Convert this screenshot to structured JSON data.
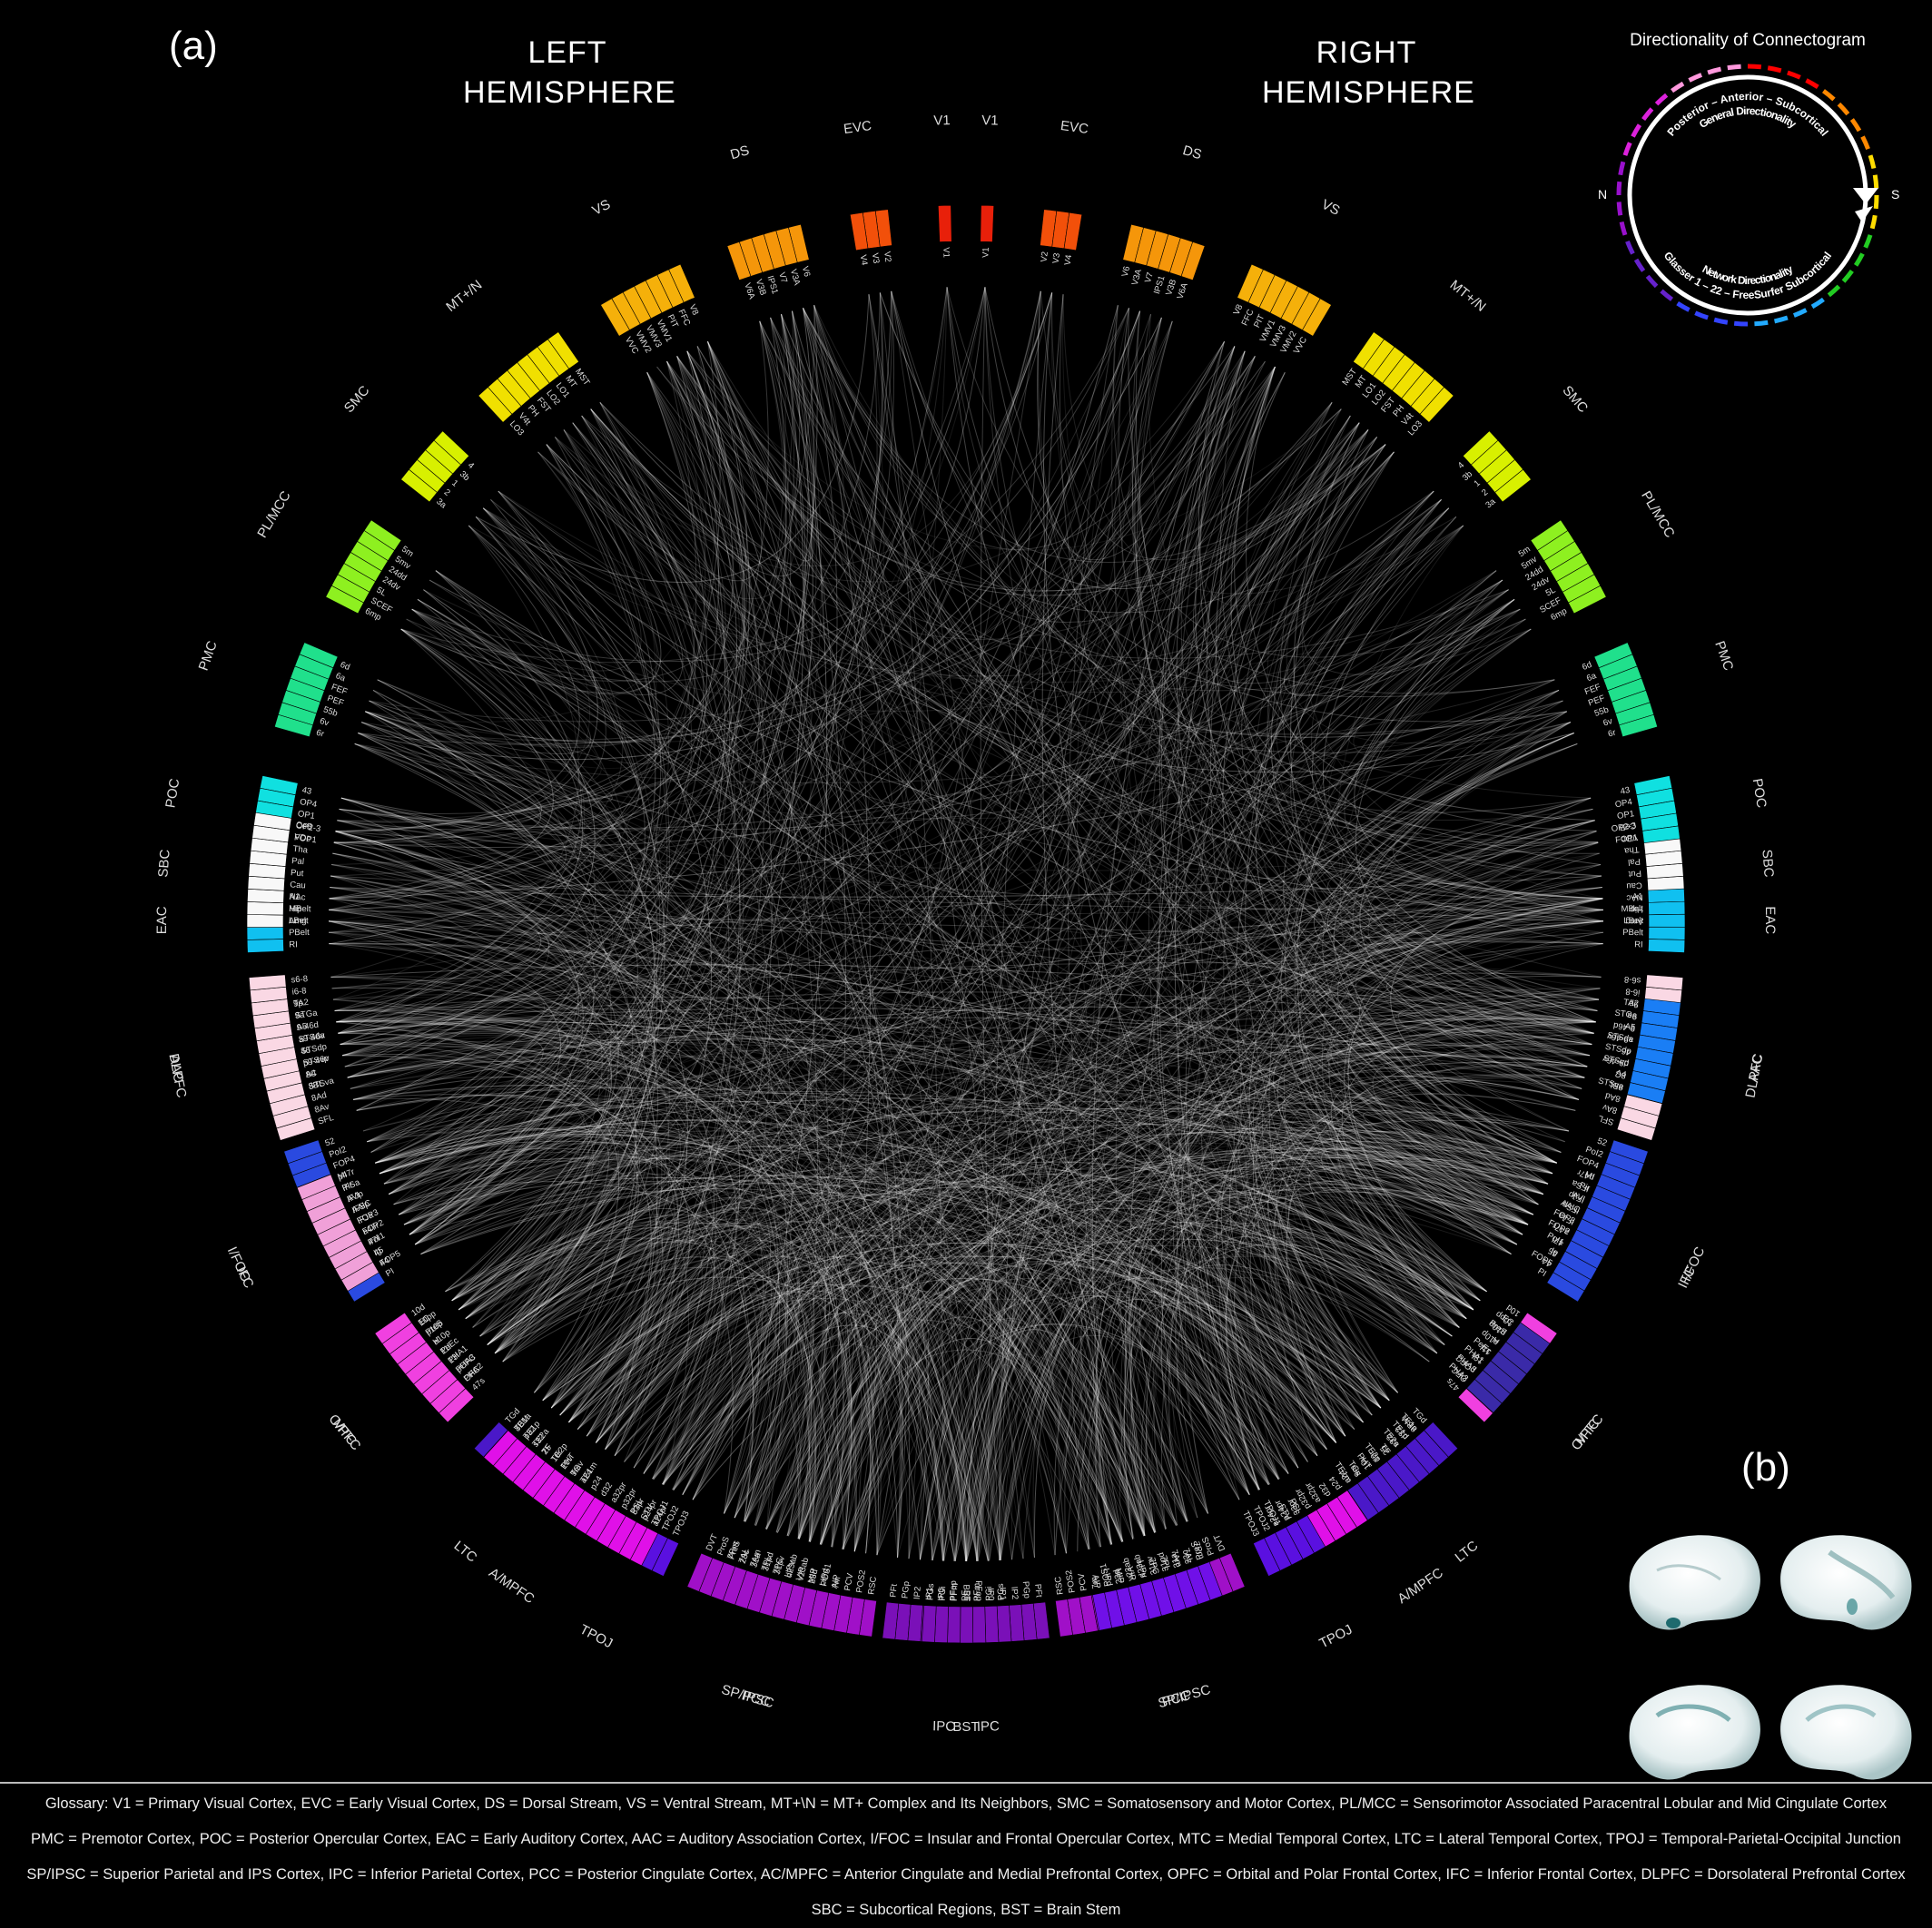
{
  "panel_a_label": "(a)",
  "panel_b_label": "(b)",
  "left_hemisphere": [
    "LEFT",
    "HEMISPHERE"
  ],
  "right_hemisphere": [
    "RIGHT",
    "HEMISPHERE"
  ],
  "legend": {
    "title": "Directionality of Connectogram",
    "outer_text": "Posterior – Anterior – Subcortical",
    "outer_sub": "General Directionality",
    "inner_text": "Glasser 1 – 22 – FreeSurfer Subcortical",
    "inner_sub": "Network Directionality",
    "north": "N",
    "south": "S"
  },
  "colors": {
    "V1": "#e8200a",
    "EVC": "#f2500a",
    "DS": "#f5960a",
    "VS": "#f5b00a",
    "MT+/N": "#f0e000",
    "SMC": "#d8f000",
    "PL/MCC": "#8ef020",
    "PMC": "#20e08c",
    "POC": "#10e0e0",
    "EAC": "#10c0f0",
    "AAC": "#1a7ef5",
    "I/FOC": "#2a4ae0",
    "MTC": "#3a2aa8",
    "LTC": "#4a18c8",
    "TPOJ": "#5a10e0",
    "SP/IPSC": "#7010e8",
    "IPC": "#7a10b8",
    "PCC": "#a010c8",
    "A/MPFC": "#e010e8",
    "O/PFC": "#f040e0",
    "IFC": "#f0a0d8",
    "DLPFC": "#fad8e4",
    "SBC": "#f8f8f8",
    "BST": "#ffffff"
  },
  "networks_left": [
    {
      "name": "V1",
      "labels": [
        "V1"
      ]
    },
    {
      "name": "EVC",
      "labels": [
        "V2",
        "V3",
        "V4"
      ]
    },
    {
      "name": "DS",
      "labels": [
        "V6",
        "V3A",
        "V7",
        "IPS1",
        "V3B",
        "V6A"
      ]
    },
    {
      "name": "VS",
      "labels": [
        "V8",
        "FFC",
        "PIT",
        "VMV1",
        "VMV3",
        "VMV2",
        "VVC"
      ]
    },
    {
      "name": "MT+/N",
      "labels": [
        "MST",
        "MT",
        "LO1",
        "LO2",
        "FST",
        "PH",
        "V4t",
        "LO3"
      ]
    },
    {
      "name": "SMC",
      "labels": [
        "4",
        "3b",
        "1",
        "2",
        "3a"
      ]
    },
    {
      "name": "PL/MCC",
      "labels": [
        "5m",
        "5mv",
        "24dd",
        "24dv",
        "5L",
        "SCEF",
        "6mp"
      ]
    },
    {
      "name": "PMC",
      "labels": [
        "6d",
        "6a",
        "FEF",
        "PEF",
        "55b",
        "6v",
        "6r"
      ]
    },
    {
      "name": "POC",
      "labels": [
        "43",
        "OP4",
        "OP1",
        "OP2-3",
        "FOP1"
      ]
    },
    {
      "name": "EAC",
      "labels": [
        "A1",
        "MBelt",
        "LBelt",
        "PBelt",
        "RI"
      ]
    },
    {
      "name": "AAC",
      "labels": [
        "TA2",
        "STGa",
        "A5",
        "STSda",
        "STSdp",
        "STSvp",
        "A4",
        "STSva"
      ]
    },
    {
      "name": "I/FOC",
      "labels": [
        "52",
        "PoI2",
        "FOP4",
        "MI",
        "Pir",
        "AVI",
        "AAIC",
        "FOP3",
        "FOP2",
        "PoI1",
        "Ig",
        "FOP5",
        "PI"
      ]
    },
    {
      "name": "MTC",
      "labels": [
        "EC",
        "PreS",
        "H",
        "PeEc",
        "PHA1",
        "PHA3",
        "PHA2"
      ]
    },
    {
      "name": "LTC",
      "labels": [
        "TGd",
        "TE1a",
        "TE1p",
        "TE2a",
        "TF",
        "TE2p",
        "PHT",
        "TGv",
        "TE1m"
      ]
    },
    {
      "name": "TPOJ",
      "labels": [
        "PSL",
        "STV",
        "TPOJ1",
        "TPOJ2",
        "TPOJ3"
      ]
    },
    {
      "name": "SP/IPSC",
      "labels": [
        "7Pm",
        "7AL",
        "7Am",
        "7PL",
        "7PC",
        "LIPv",
        "VIP",
        "MIP",
        "LIPd",
        "AIP"
      ]
    },
    {
      "name": "IPC",
      "labels": [
        "PFt",
        "PGp",
        "IP2",
        "IP1",
        "IP0",
        "PFop",
        "PF",
        "PFm",
        "PGi",
        "PGs"
      ]
    },
    {
      "name": "PCC",
      "labels": [
        "RSC",
        "POS2",
        "PCV",
        "7m",
        "POS1",
        "23d",
        "v23ab",
        "d23ab",
        "31pv",
        "31pd",
        "31a",
        "23c",
        "PreS",
        "ProS",
        "DVT"
      ]
    },
    {
      "name": "A/MPFC",
      "labels": [
        "a24pr",
        "p24pr",
        "33pr",
        "p32pr",
        "a32pr",
        "d32",
        "p24",
        "a24",
        "9m",
        "10v",
        "10r",
        "25",
        "s32",
        "p32",
        "8BM"
      ]
    },
    {
      "name": "O/PFC",
      "labels": [
        "47s",
        "OFC",
        "pOFC",
        "13l",
        "11l",
        "a10p",
        "p10p",
        "10pp",
        "10d"
      ]
    },
    {
      "name": "IFC",
      "labels": [
        "44",
        "45",
        "47l",
        "a47r",
        "IFJa",
        "IFSp",
        "IFJp",
        "IFSa",
        "p47r"
      ]
    },
    {
      "name": "DLPFC",
      "labels": [
        "SFL",
        "8Av",
        "8Ad",
        "8BL",
        "8C",
        "p9-46v",
        "46",
        "a9-46v",
        "9-46d",
        "9a",
        "9p",
        "i6-8",
        "s6-8"
      ]
    },
    {
      "name": "SBC",
      "labels": [
        "Amg",
        "Hip",
        "NAc",
        "Cau",
        "Put",
        "Pal",
        "Tha",
        "VDc",
        "CeB"
      ]
    },
    {
      "name": "BST",
      "labels": [
        "BST"
      ]
    }
  ],
  "networks_right": [
    {
      "name": "V1",
      "labels": [
        "V1"
      ]
    },
    {
      "name": "EVC",
      "labels": [
        "V2",
        "V3",
        "V4"
      ]
    },
    {
      "name": "DS",
      "labels": [
        "V6",
        "V3A",
        "V7",
        "IPS1",
        "V3B",
        "V6A"
      ]
    },
    {
      "name": "VS",
      "labels": [
        "V8",
        "FFC",
        "PIT",
        "VMV1",
        "VMV3",
        "VMV2",
        "VVC"
      ]
    },
    {
      "name": "MT+/N",
      "labels": [
        "MST",
        "MT",
        "LO1",
        "LO2",
        "FST",
        "PH",
        "V4t",
        "LO3"
      ]
    },
    {
      "name": "SMC",
      "labels": [
        "4",
        "3b",
        "1",
        "2",
        "3a"
      ]
    },
    {
      "name": "PL/MCC",
      "labels": [
        "5m",
        "5mv",
        "24dd",
        "24dv",
        "5L",
        "SCEF",
        "6mp"
      ]
    },
    {
      "name": "PMC",
      "labels": [
        "6d",
        "6a",
        "FEF",
        "PEF",
        "55b",
        "6v",
        "6r"
      ]
    },
    {
      "name": "POC",
      "labels": [
        "43",
        "OP4",
        "OP1",
        "OP2-3",
        "FOP1"
      ]
    },
    {
      "name": "EAC",
      "labels": [
        "A1",
        "MBelt",
        "LBelt",
        "PBelt",
        "RI"
      ]
    },
    {
      "name": "AAC",
      "labels": [
        "TA2",
        "STGa",
        "A5",
        "STSda",
        "STSdp",
        "STSvp",
        "A4",
        "STSva"
      ]
    },
    {
      "name": "I/FOC",
      "labels": [
        "52",
        "PoI2",
        "FOP4",
        "MI",
        "Pir",
        "AVI",
        "AAIC",
        "FOP3",
        "FOP2",
        "PoI1",
        "Ig",
        "FOP5",
        "PI"
      ]
    },
    {
      "name": "MTC",
      "labels": [
        "EC",
        "PreS",
        "H",
        "PeEc",
        "PHA1",
        "PHA3",
        "PHA2"
      ]
    },
    {
      "name": "LTC",
      "labels": [
        "TGd",
        "TE1a",
        "TE1p",
        "TE2a",
        "TF",
        "TE2p",
        "PHT",
        "TGv",
        "TE1m"
      ]
    },
    {
      "name": "TPOJ",
      "labels": [
        "PSL",
        "STV",
        "TPOJ1",
        "TPOJ2",
        "TPOJ3"
      ]
    },
    {
      "name": "SP/IPSC",
      "labels": [
        "7Pm",
        "7AL",
        "7Am",
        "7PL",
        "7PC",
        "LIPv",
        "VIP",
        "MIP",
        "LIPd",
        "AIP"
      ]
    },
    {
      "name": "IPC",
      "labels": [
        "PFt",
        "PGp",
        "IP2",
        "IP1",
        "IP0",
        "PFop",
        "PF",
        "PFm",
        "PGi",
        "PGs"
      ]
    },
    {
      "name": "PCC",
      "labels": [
        "RSC",
        "POS2",
        "PCV",
        "7m",
        "POS1",
        "23d",
        "v23ab",
        "d23ab",
        "31pv",
        "31pd",
        "31a",
        "23c",
        "PreS",
        "ProS",
        "DVT"
      ]
    },
    {
      "name": "A/MPFC",
      "labels": [
        "a24pr",
        "p24pr",
        "33pr",
        "p32pr",
        "a32pr",
        "d32",
        "p24",
        "a24",
        "9m",
        "10v",
        "10r",
        "25",
        "s32",
        "p32",
        "8BM"
      ]
    },
    {
      "name": "O/PFC",
      "labels": [
        "47s",
        "OFC",
        "pOFC",
        "13l",
        "11l",
        "a10p",
        "p10p",
        "10pp",
        "10d"
      ]
    },
    {
      "name": "IFC",
      "labels": [
        "44",
        "45",
        "47l",
        "a47r",
        "IFJa",
        "IFSp",
        "IFJp",
        "IFSa",
        "p47r"
      ]
    },
    {
      "name": "DLPFC",
      "labels": [
        "SFL",
        "8Av",
        "8Ad",
        "8BL",
        "8C",
        "p9-46v",
        "46",
        "a9-46v",
        "9-46d",
        "9a",
        "9p",
        "i6-8",
        "s6-8"
      ]
    },
    {
      "name": "SBC",
      "labels": [
        "Amg",
        "Hip",
        "NAc",
        "Cau",
        "Put",
        "Pal",
        "Tha",
        "VDc",
        "CeB"
      ]
    }
  ],
  "glossary_lines": [
    "Glossary:  V1 = Primary Visual Cortex,   EVC = Early Visual Cortex,   DS = Dorsal Stream,   VS = Ventral Stream,   MT+\\N = MT+ Complex and Its Neighbors,   SMC = Somatosensory and Motor Cortex,   PL/MCC = Sensorimotor Associated Paracentral Lobular and Mid Cingulate Cortex",
    "PMC = Premotor Cortex,   POC = Posterior Opercular Cortex,   EAC = Early Auditory Cortex,   AAC = Auditory Association Cortex,   I/FOC = Insular and Frontal Opercular Cortex,   MTC = Medial Temporal Cortex,   LTC = Lateral Temporal Cortex,   TPOJ = Temporal-Parietal-Occipital Junction",
    "SP/IPSC = Superior Parietal and IPS Cortex,   IPC = Inferior Parietal Cortex,   PCC = Posterior Cingulate Cortex,   AC/MPFC = Anterior Cingulate and Medial Prefrontal Cortex,   OPFC = Orbital and Polar Frontal Cortex,   IFC = Inferior Frontal Cortex,   DLPFC = Dorsolateral Prefrontal Cortex",
    "SBC = Subcortical Regions,   BST = Brain Stem"
  ]
}
